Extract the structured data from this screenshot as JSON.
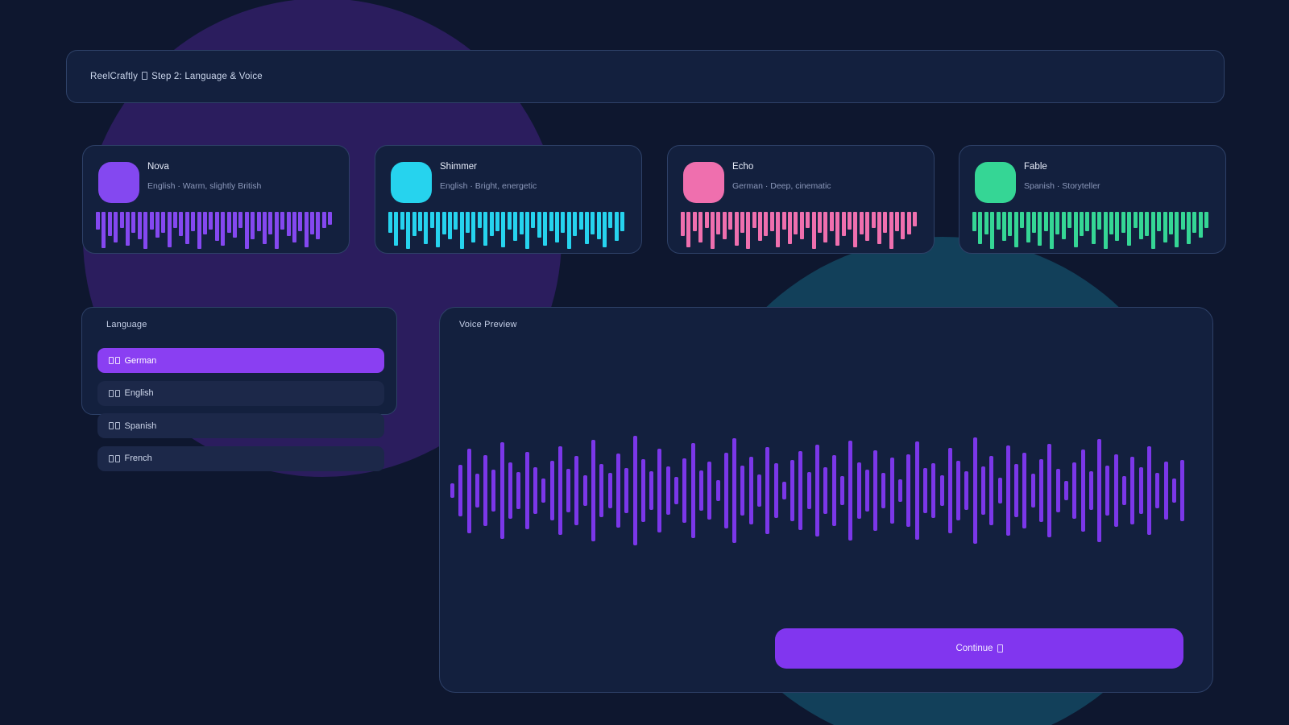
{
  "header": {
    "brand": "ReelCraftly",
    "step_title": "Step 2: Language & Voice"
  },
  "voices": [
    {
      "name": "Nova",
      "description": "English · Warm, slightly British",
      "color": "#8448f0",
      "waveform": [
        22,
        45,
        30,
        38,
        20,
        42,
        26,
        34,
        46,
        22,
        32,
        26,
        44,
        20,
        30,
        40,
        24,
        46,
        28,
        22,
        36,
        42,
        26,
        32,
        20,
        46,
        34,
        24,
        40,
        28,
        46,
        22,
        30,
        38,
        24,
        44,
        28,
        34,
        20,
        16
      ]
    },
    {
      "name": "Shimmer",
      "description": "English · Bright, energetic",
      "color": "#26d3ee",
      "waveform": [
        26,
        42,
        22,
        46,
        30,
        24,
        40,
        20,
        44,
        28,
        34,
        22,
        46,
        26,
        38,
        20,
        42,
        30,
        24,
        44,
        22,
        36,
        28,
        46,
        20,
        32,
        42,
        24,
        38,
        26,
        46,
        30,
        22,
        40,
        28,
        34,
        44,
        20,
        36,
        24
      ]
    },
    {
      "name": "Echo",
      "description": "German · Deep, cinematic",
      "color": "#ef6fae",
      "waveform": [
        30,
        44,
        24,
        38,
        20,
        46,
        28,
        34,
        22,
        42,
        26,
        46,
        20,
        36,
        30,
        24,
        44,
        22,
        40,
        28,
        34,
        20,
        46,
        26,
        38,
        24,
        42,
        30,
        22,
        44,
        28,
        36,
        20,
        40,
        26,
        46,
        24,
        34,
        28,
        18
      ]
    },
    {
      "name": "Fable",
      "description": "Spanish · Storyteller",
      "color": "#35d695",
      "waveform": [
        24,
        40,
        28,
        46,
        22,
        36,
        30,
        44,
        20,
        38,
        26,
        42,
        24,
        46,
        28,
        34,
        20,
        44,
        30,
        24,
        40,
        22,
        46,
        28,
        36,
        26,
        42,
        20,
        34,
        30,
        46,
        24,
        38,
        28,
        44,
        22,
        40,
        26,
        32,
        20
      ]
    }
  ],
  "language_panel": {
    "title": "Language",
    "selected_bg": "#8a3ff2",
    "options": [
      {
        "label": "German",
        "flag_code": "de",
        "selected": true
      },
      {
        "label": "English",
        "flag_code": "gb",
        "selected": false
      },
      {
        "label": "Spanish",
        "flag_code": "es",
        "selected": false
      },
      {
        "label": "French",
        "flag_code": "fr",
        "selected": false
      }
    ]
  },
  "preview": {
    "title": "Voice Preview",
    "wave_color": "#7b37e9",
    "waveform": [
      18,
      64,
      105,
      42,
      88,
      52,
      120,
      70,
      46,
      96,
      58,
      30,
      74,
      110,
      54,
      86,
      38,
      126,
      66,
      44,
      92,
      56,
      136,
      78,
      48,
      104,
      60,
      34,
      80,
      118,
      50,
      72,
      26,
      94,
      130,
      62,
      84,
      40,
      108,
      68,
      22,
      76,
      98,
      46,
      114,
      58,
      88,
      36,
      124,
      70,
      52,
      100,
      44,
      82,
      28,
      90,
      122,
      56,
      68,
      38,
      106,
      74,
      48,
      132,
      60,
      86,
      32,
      112,
      66,
      94,
      42,
      78,
      116,
      54,
      24,
      70,
      102,
      48,
      128,
      62,
      90,
      36,
      84,
      58,
      110,
      44,
      72,
      30,
      76
    ],
    "continue": {
      "label": "Continue",
      "bg": "#8136ef"
    }
  },
  "theme": {
    "page_bg": "#0e172f",
    "panel_bg": "#13203e",
    "panel_border": "#2e4168",
    "row_bg": "#1c2849",
    "blob_purple": "#2b1d5e",
    "blob_teal": "#12405a",
    "text_primary": "#e9eefb",
    "text_muted": "#8b98ba"
  }
}
